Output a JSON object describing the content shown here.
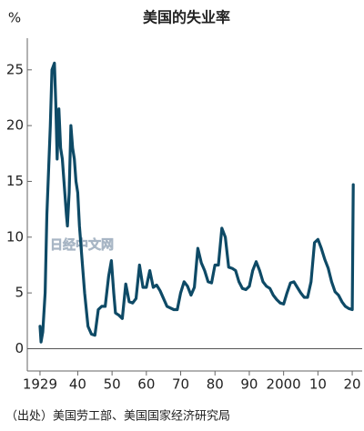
{
  "chart_data": {
    "type": "line",
    "title": "美国的失业率",
    "y_label": "%",
    "source": "（出处）美国劳工部、美国国家经济研究局",
    "watermark": "日经中文网",
    "color": "#0e4a66",
    "x": [
      1929.0,
      1929.3,
      1929.8,
      1930.5,
      1931,
      1932,
      1932.5,
      1933.2,
      1933.6,
      1934,
      1934.5,
      1935,
      1935.5,
      1936,
      1936.7,
      1937,
      1937.5,
      1938,
      1938.5,
      1939,
      1939.5,
      1940,
      1940.5,
      1941,
      1942,
      1943,
      1944,
      1945,
      1946,
      1947,
      1948,
      1949,
      1949.8,
      1950.5,
      1951,
      1952,
      1953,
      1954,
      1955,
      1956,
      1957,
      1958,
      1959,
      1960,
      1961,
      1962,
      1963,
      1964,
      1965,
      1966,
      1968,
      1969,
      1970,
      1971,
      1972,
      1973,
      1974,
      1975,
      1976,
      1977,
      1978,
      1979,
      1980,
      1981,
      1982,
      1983,
      1984,
      1985,
      1986,
      1987,
      1988,
      1989,
      1990,
      1991,
      1992,
      1993,
      1994,
      1995,
      1996,
      1997,
      1998,
      1999,
      2000,
      2001,
      2002,
      2003,
      2004,
      2005,
      2006,
      2007,
      2008,
      2009,
      2010,
      2011,
      2012,
      2013,
      2014,
      2015,
      2016,
      2017,
      2018,
      2019,
      2020.0,
      2020.3
    ],
    "values": [
      2,
      0.6,
      1.5,
      5,
      12,
      20,
      25,
      25.6,
      22,
      17,
      21.5,
      18,
      17,
      15,
      12,
      11,
      14,
      20,
      18,
      17,
      15,
      14,
      11,
      9,
      5,
      2,
      1.3,
      1.2,
      3.5,
      3.8,
      3.8,
      6.5,
      7.9,
      5,
      3.2,
      3,
      2.7,
      5.8,
      4.2,
      4.1,
      4.5,
      7.5,
      5.5,
      5.5,
      7,
      5.5,
      5.7,
      5.2,
      4.5,
      3.8,
      3.5,
      3.5,
      5,
      6,
      5.6,
      4.8,
      5.5,
      9,
      7.7,
      7,
      6,
      5.9,
      7.5,
      7.5,
      10.8,
      10,
      7.3,
      7.2,
      7,
      6,
      5.4,
      5.3,
      5.6,
      7,
      7.8,
      7,
      6,
      5.6,
      5.4,
      4.8,
      4.4,
      4.1,
      4,
      5,
      5.9,
      6,
      5.5,
      5,
      4.6,
      4.6,
      6,
      9.5,
      9.8,
      9,
      8,
      7.2,
      6,
      5.1,
      4.8,
      4.2,
      3.8,
      3.6,
      3.5,
      14.7
    ],
    "xlim": [
      1925.3,
      2022.9
    ],
    "xticks": [
      1929,
      {
        "value": 1940,
        "label": "40"
      },
      {
        "value": 1950,
        "label": "50"
      },
      {
        "value": 1960,
        "label": "60"
      },
      {
        "value": 1970,
        "label": "70"
      },
      {
        "value": 1980,
        "label": "80"
      },
      {
        "value": 1990,
        "label": "90"
      },
      2000,
      {
        "value": 2010,
        "label": "10"
      },
      {
        "value": 2020,
        "label": "20"
      }
    ],
    "ylim": [
      -2,
      28
    ],
    "yticks": [
      0,
      5,
      10,
      15,
      20,
      25
    ]
  }
}
